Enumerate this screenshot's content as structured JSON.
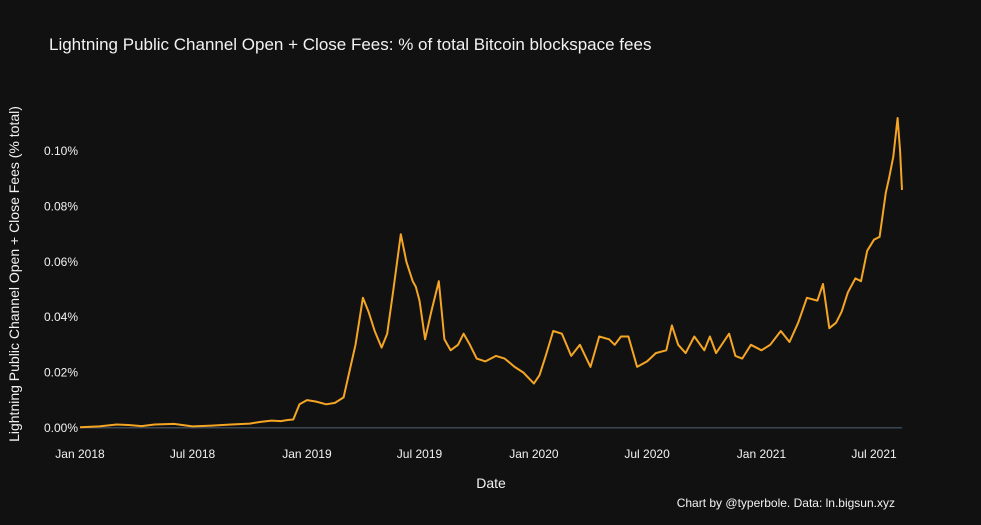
{
  "colors": {
    "background": "#111111",
    "series": "#f4a524",
    "zeroline": "#3a4752",
    "text": "#f2f2f2"
  },
  "chart_data": {
    "type": "line",
    "title": "Lightning Public Channel Open + Close Fees: % of total Bitcoin blockspace fees",
    "xlabel": "Date",
    "ylabel": "Lightning Public Channel Open + Close Fees (% total)",
    "credit": "Chart by @typerbole. Data: ln.bigsun.xyz",
    "ylim": [
      -0.0008,
      0.112
    ],
    "xlim": [
      "2018-01-01",
      "2021-08-15"
    ],
    "grid": false,
    "x_ticks": [
      {
        "date": "2018-01-01",
        "label": "Jan 2018"
      },
      {
        "date": "2018-07-01",
        "label": "Jul 2018"
      },
      {
        "date": "2019-01-01",
        "label": "Jan 2019"
      },
      {
        "date": "2019-07-01",
        "label": "Jul 2019"
      },
      {
        "date": "2020-01-01",
        "label": "Jan 2020"
      },
      {
        "date": "2020-07-01",
        "label": "Jul 2020"
      },
      {
        "date": "2021-01-01",
        "label": "Jan 2021"
      },
      {
        "date": "2021-07-01",
        "label": "Jul 2021"
      }
    ],
    "y_ticks": [
      {
        "value": 0,
        "label": "0.00%"
      },
      {
        "value": 0.02,
        "label": "0.02%"
      },
      {
        "value": 0.04,
        "label": "0.04%"
      },
      {
        "value": 0.06,
        "label": "0.06%"
      },
      {
        "value": 0.08,
        "label": "0.08%"
      },
      {
        "value": 0.1,
        "label": "0.10%"
      }
    ],
    "series": [
      {
        "x": [
          "2018-01-01",
          "2018-02-01",
          "2018-03-01",
          "2018-03-20",
          "2018-04-10",
          "2018-05-01",
          "2018-06-01",
          "2018-07-01",
          "2018-08-01",
          "2018-09-01",
          "2018-10-01",
          "2018-10-20",
          "2018-11-05",
          "2018-11-20",
          "2018-12-01",
          "2018-12-10",
          "2018-12-20",
          "2019-01-01",
          "2019-01-15",
          "2019-02-01",
          "2019-02-15",
          "2019-03-01",
          "2019-03-10",
          "2019-03-20",
          "2019-04-01",
          "2019-04-10",
          "2019-04-20",
          "2019-05-01",
          "2019-05-10",
          "2019-05-20",
          "2019-06-01",
          "2019-06-10",
          "2019-06-20",
          "2019-06-25",
          "2019-07-01",
          "2019-07-10",
          "2019-07-20",
          "2019-08-01",
          "2019-08-10",
          "2019-08-20",
          "2019-09-01",
          "2019-09-10",
          "2019-09-20",
          "2019-10-01",
          "2019-10-15",
          "2019-11-01",
          "2019-11-15",
          "2019-12-01",
          "2019-12-15",
          "2020-01-01",
          "2020-01-10",
          "2020-01-20",
          "2020-02-01",
          "2020-02-15",
          "2020-03-01",
          "2020-03-15",
          "2020-04-01",
          "2020-04-15",
          "2020-05-01",
          "2020-05-10",
          "2020-05-20",
          "2020-06-01",
          "2020-06-15",
          "2020-07-01",
          "2020-07-15",
          "2020-08-01",
          "2020-08-10",
          "2020-08-20",
          "2020-09-01",
          "2020-09-15",
          "2020-10-01",
          "2020-10-10",
          "2020-10-20",
          "2020-11-01",
          "2020-11-10",
          "2020-11-20",
          "2020-12-01",
          "2020-12-15",
          "2021-01-01",
          "2021-01-15",
          "2021-02-01",
          "2021-02-15",
          "2021-03-01",
          "2021-03-15",
          "2021-04-01",
          "2021-04-10",
          "2021-04-20",
          "2021-05-01",
          "2021-05-10",
          "2021-05-20",
          "2021-06-01",
          "2021-06-10",
          "2021-06-20",
          "2021-07-01",
          "2021-07-10",
          "2021-07-20",
          "2021-07-25",
          "2021-08-01",
          "2021-08-08",
          "2021-08-12",
          "2021-08-15"
        ],
        "y": [
          0.0002,
          0.0005,
          0.0012,
          0.001,
          0.0006,
          0.0012,
          0.0014,
          0.0005,
          0.0008,
          0.0012,
          0.0015,
          0.0022,
          0.0026,
          0.0024,
          0.0028,
          0.003,
          0.0085,
          0.01,
          0.0095,
          0.0085,
          0.009,
          0.011,
          0.02,
          0.03,
          0.047,
          0.042,
          0.035,
          0.029,
          0.034,
          0.05,
          0.07,
          0.06,
          0.053,
          0.051,
          0.046,
          0.032,
          0.042,
          0.053,
          0.032,
          0.028,
          0.03,
          0.034,
          0.03,
          0.025,
          0.024,
          0.026,
          0.025,
          0.022,
          0.02,
          0.016,
          0.019,
          0.026,
          0.035,
          0.034,
          0.026,
          0.03,
          0.022,
          0.033,
          0.032,
          0.03,
          0.033,
          0.033,
          0.022,
          0.024,
          0.027,
          0.028,
          0.037,
          0.03,
          0.027,
          0.033,
          0.028,
          0.033,
          0.027,
          0.031,
          0.034,
          0.026,
          0.025,
          0.03,
          0.028,
          0.03,
          0.035,
          0.031,
          0.038,
          0.047,
          0.046,
          0.052,
          0.036,
          0.038,
          0.042,
          0.049,
          0.054,
          0.053,
          0.064,
          0.068,
          0.069,
          0.085,
          0.09,
          0.098,
          0.112,
          0.1,
          0.086
        ]
      }
    ]
  }
}
